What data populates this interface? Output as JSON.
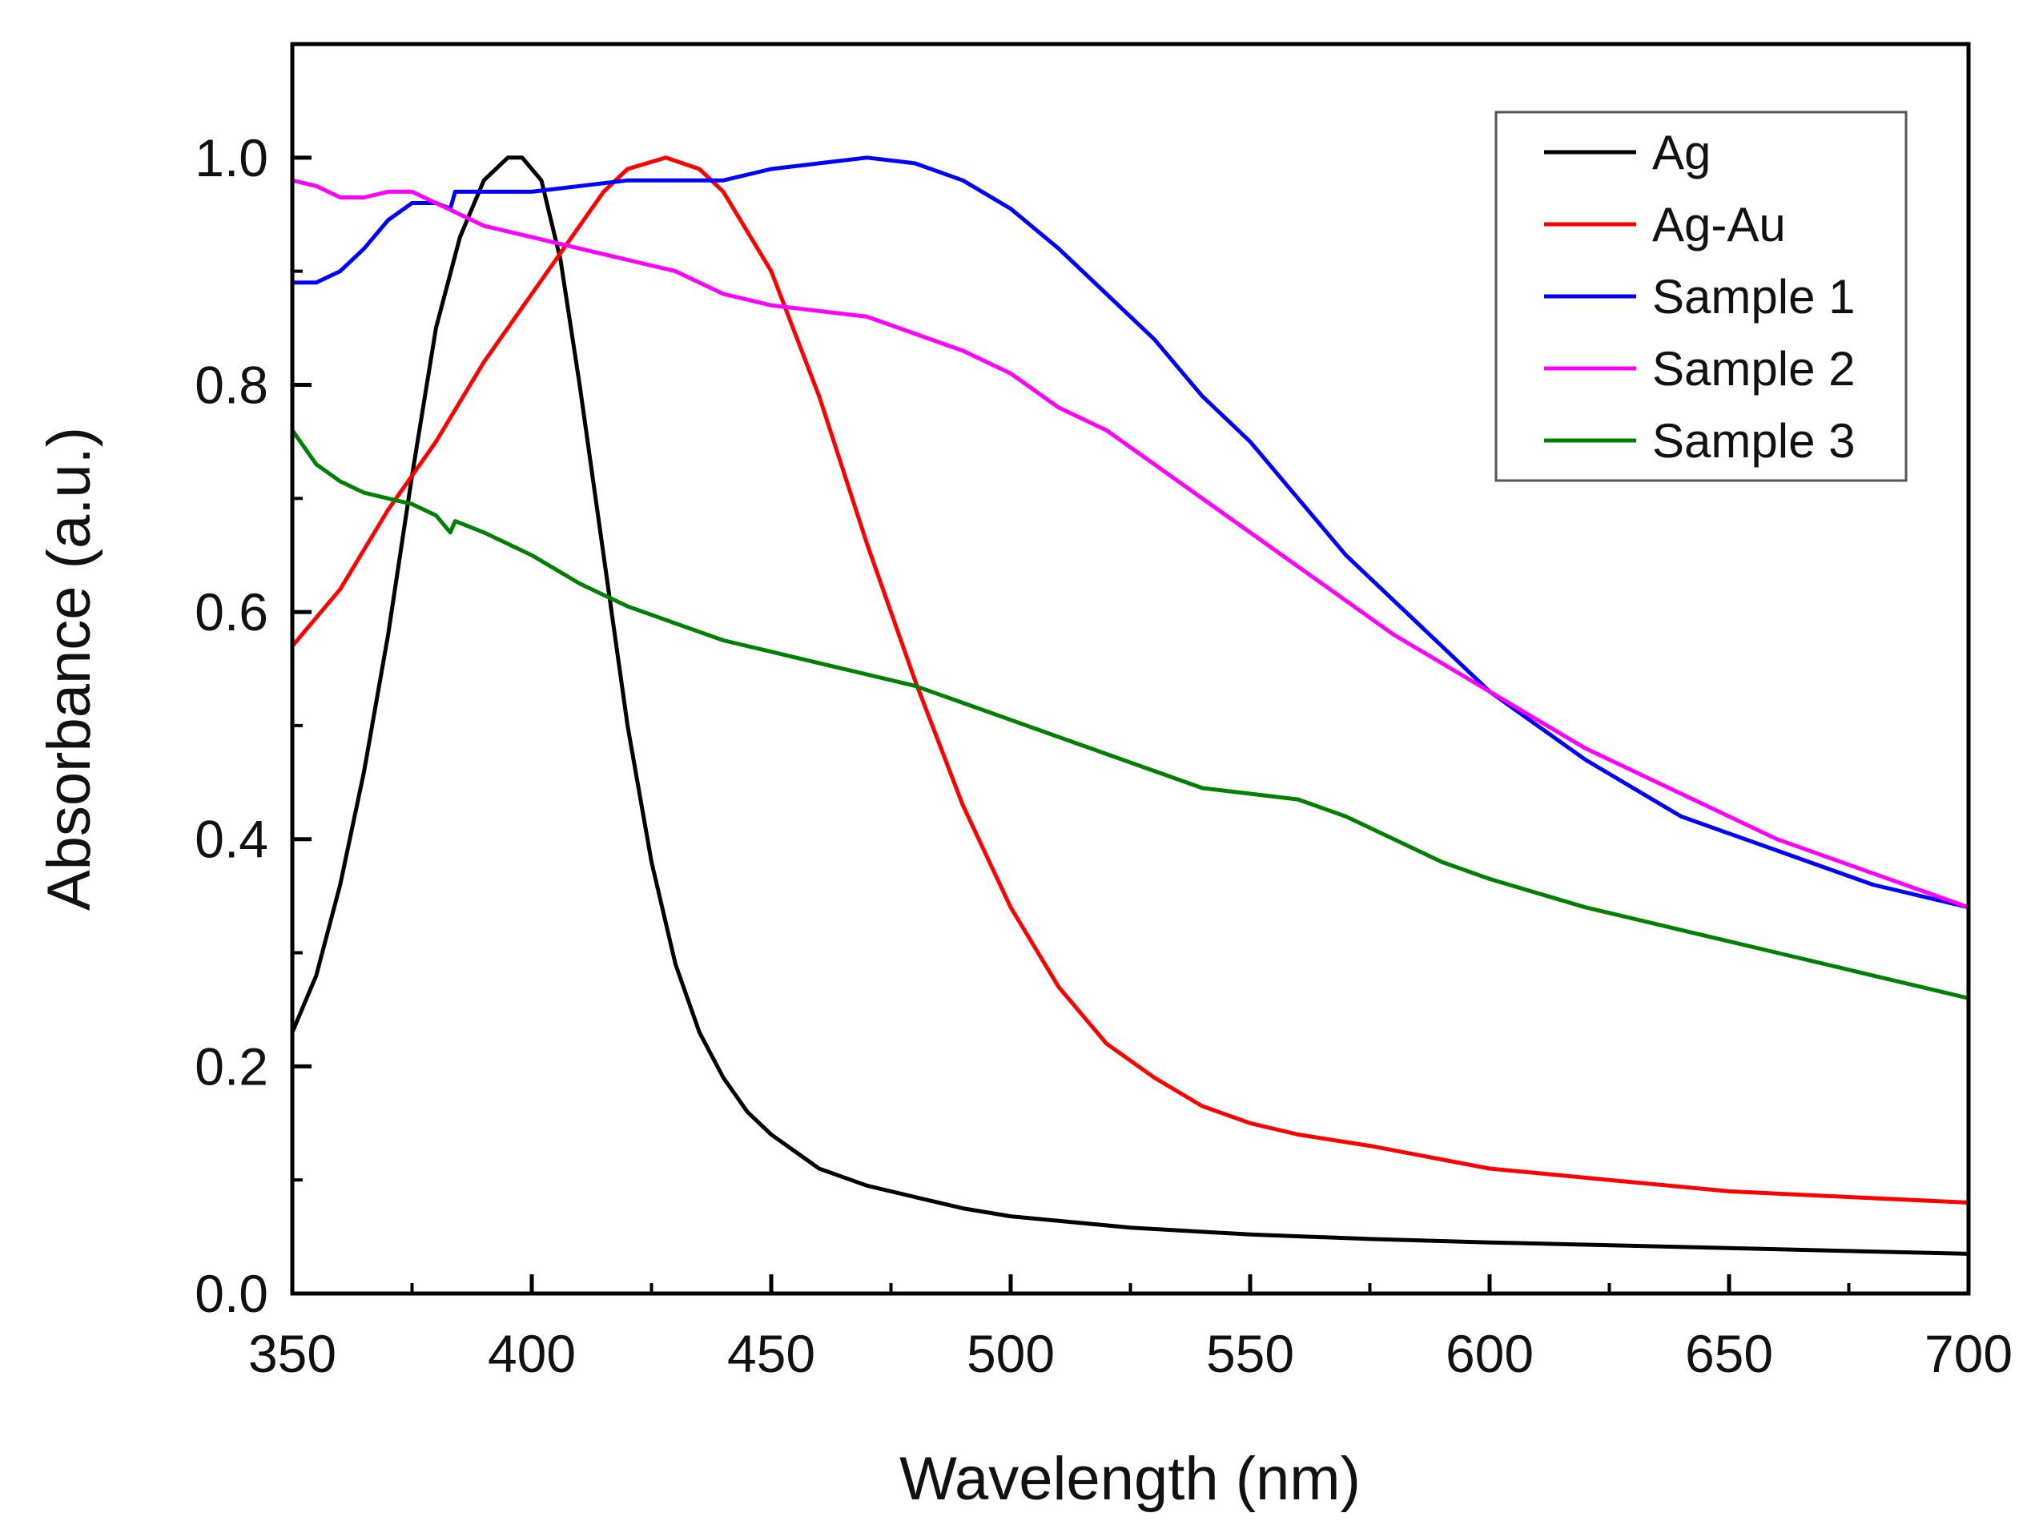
{
  "chart_data": {
    "type": "line",
    "title": "",
    "xlabel": "Wavelength (nm)",
    "ylabel": "Absorbance (a.u.)",
    "xlim": [
      350,
      700
    ],
    "ylim": [
      0,
      1.1
    ],
    "x_ticks": [
      350,
      400,
      450,
      500,
      550,
      600,
      650,
      700
    ],
    "x_tick_labels": [
      "350",
      "400",
      "450",
      "500",
      "550",
      "600",
      "650",
      "700"
    ],
    "y_ticks": [
      0.0,
      0.2,
      0.4,
      0.6,
      0.8,
      1.0
    ],
    "y_tick_labels": [
      "0.0",
      "0.2",
      "0.4",
      "0.6",
      "0.8",
      "1.0"
    ],
    "grid": false,
    "legend_position": "top-right",
    "series": [
      {
        "name": "Ag",
        "color": "#000000",
        "points": [
          [
            350,
            0.23
          ],
          [
            355,
            0.28
          ],
          [
            360,
            0.36
          ],
          [
            365,
            0.46
          ],
          [
            370,
            0.58
          ],
          [
            375,
            0.72
          ],
          [
            380,
            0.85
          ],
          [
            385,
            0.93
          ],
          [
            390,
            0.98
          ],
          [
            395,
            1.0
          ],
          [
            398,
            1.0
          ],
          [
            402,
            0.98
          ],
          [
            406,
            0.91
          ],
          [
            410,
            0.8
          ],
          [
            415,
            0.65
          ],
          [
            420,
            0.5
          ],
          [
            425,
            0.38
          ],
          [
            430,
            0.29
          ],
          [
            435,
            0.23
          ],
          [
            440,
            0.19
          ],
          [
            445,
            0.16
          ],
          [
            450,
            0.14
          ],
          [
            460,
            0.11
          ],
          [
            470,
            0.095
          ],
          [
            480,
            0.085
          ],
          [
            490,
            0.075
          ],
          [
            500,
            0.068
          ],
          [
            525,
            0.058
          ],
          [
            550,
            0.052
          ],
          [
            575,
            0.048
          ],
          [
            600,
            0.045
          ],
          [
            650,
            0.04
          ],
          [
            700,
            0.035
          ]
        ]
      },
      {
        "name": "Ag-Au",
        "color": "#ff0000",
        "points": [
          [
            350,
            0.57
          ],
          [
            360,
            0.62
          ],
          [
            370,
            0.69
          ],
          [
            380,
            0.75
          ],
          [
            390,
            0.82
          ],
          [
            400,
            0.88
          ],
          [
            410,
            0.94
          ],
          [
            415,
            0.97
          ],
          [
            420,
            0.99
          ],
          [
            428,
            1.0
          ],
          [
            435,
            0.99
          ],
          [
            440,
            0.97
          ],
          [
            450,
            0.9
          ],
          [
            460,
            0.79
          ],
          [
            470,
            0.66
          ],
          [
            480,
            0.54
          ],
          [
            490,
            0.43
          ],
          [
            500,
            0.34
          ],
          [
            510,
            0.27
          ],
          [
            520,
            0.22
          ],
          [
            530,
            0.19
          ],
          [
            540,
            0.165
          ],
          [
            550,
            0.15
          ],
          [
            560,
            0.14
          ],
          [
            575,
            0.13
          ],
          [
            600,
            0.11
          ],
          [
            625,
            0.1
          ],
          [
            650,
            0.09
          ],
          [
            675,
            0.085
          ],
          [
            700,
            0.08
          ]
        ]
      },
      {
        "name": "Sample 1",
        "color": "#0000ff",
        "points": [
          [
            350,
            0.89
          ],
          [
            355,
            0.89
          ],
          [
            360,
            0.9
          ],
          [
            365,
            0.92
          ],
          [
            370,
            0.945
          ],
          [
            375,
            0.96
          ],
          [
            380,
            0.96
          ],
          [
            383,
            0.955
          ],
          [
            384,
            0.97
          ],
          [
            390,
            0.97
          ],
          [
            400,
            0.97
          ],
          [
            410,
            0.975
          ],
          [
            420,
            0.98
          ],
          [
            430,
            0.98
          ],
          [
            440,
            0.98
          ],
          [
            450,
            0.99
          ],
          [
            460,
            0.995
          ],
          [
            470,
            1.0
          ],
          [
            480,
            0.995
          ],
          [
            490,
            0.98
          ],
          [
            500,
            0.955
          ],
          [
            510,
            0.92
          ],
          [
            520,
            0.88
          ],
          [
            530,
            0.84
          ],
          [
            540,
            0.79
          ],
          [
            550,
            0.75
          ],
          [
            560,
            0.7
          ],
          [
            570,
            0.65
          ],
          [
            580,
            0.61
          ],
          [
            590,
            0.57
          ],
          [
            600,
            0.53
          ],
          [
            620,
            0.47
          ],
          [
            640,
            0.42
          ],
          [
            660,
            0.39
          ],
          [
            680,
            0.36
          ],
          [
            700,
            0.34
          ]
        ]
      },
      {
        "name": "Sample 2",
        "color": "#ff00ff",
        "points": [
          [
            350,
            0.98
          ],
          [
            355,
            0.975
          ],
          [
            360,
            0.965
          ],
          [
            365,
            0.965
          ],
          [
            370,
            0.97
          ],
          [
            375,
            0.97
          ],
          [
            380,
            0.96
          ],
          [
            390,
            0.94
          ],
          [
            400,
            0.93
          ],
          [
            410,
            0.92
          ],
          [
            420,
            0.91
          ],
          [
            430,
            0.9
          ],
          [
            440,
            0.88
          ],
          [
            450,
            0.87
          ],
          [
            460,
            0.865
          ],
          [
            470,
            0.86
          ],
          [
            480,
            0.845
          ],
          [
            490,
            0.83
          ],
          [
            500,
            0.81
          ],
          [
            510,
            0.78
          ],
          [
            520,
            0.76
          ],
          [
            530,
            0.73
          ],
          [
            540,
            0.7
          ],
          [
            550,
            0.67
          ],
          [
            560,
            0.64
          ],
          [
            570,
            0.61
          ],
          [
            580,
            0.58
          ],
          [
            590,
            0.555
          ],
          [
            600,
            0.53
          ],
          [
            620,
            0.48
          ],
          [
            640,
            0.44
          ],
          [
            660,
            0.4
          ],
          [
            680,
            0.37
          ],
          [
            700,
            0.34
          ]
        ]
      },
      {
        "name": "Sample 3",
        "color": "#008000",
        "points": [
          [
            350,
            0.76
          ],
          [
            355,
            0.73
          ],
          [
            360,
            0.715
          ],
          [
            365,
            0.705
          ],
          [
            370,
            0.7
          ],
          [
            375,
            0.695
          ],
          [
            380,
            0.685
          ],
          [
            383,
            0.67
          ],
          [
            384,
            0.68
          ],
          [
            390,
            0.67
          ],
          [
            400,
            0.65
          ],
          [
            410,
            0.625
          ],
          [
            420,
            0.605
          ],
          [
            430,
            0.59
          ],
          [
            440,
            0.575
          ],
          [
            450,
            0.565
          ],
          [
            460,
            0.555
          ],
          [
            470,
            0.545
          ],
          [
            480,
            0.535
          ],
          [
            490,
            0.52
          ],
          [
            500,
            0.505
          ],
          [
            510,
            0.49
          ],
          [
            520,
            0.475
          ],
          [
            530,
            0.46
          ],
          [
            540,
            0.445
          ],
          [
            550,
            0.44
          ],
          [
            560,
            0.435
          ],
          [
            570,
            0.42
          ],
          [
            580,
            0.4
          ],
          [
            590,
            0.38
          ],
          [
            600,
            0.365
          ],
          [
            620,
            0.34
          ],
          [
            640,
            0.32
          ],
          [
            660,
            0.3
          ],
          [
            680,
            0.28
          ],
          [
            700,
            0.26
          ]
        ]
      }
    ]
  }
}
